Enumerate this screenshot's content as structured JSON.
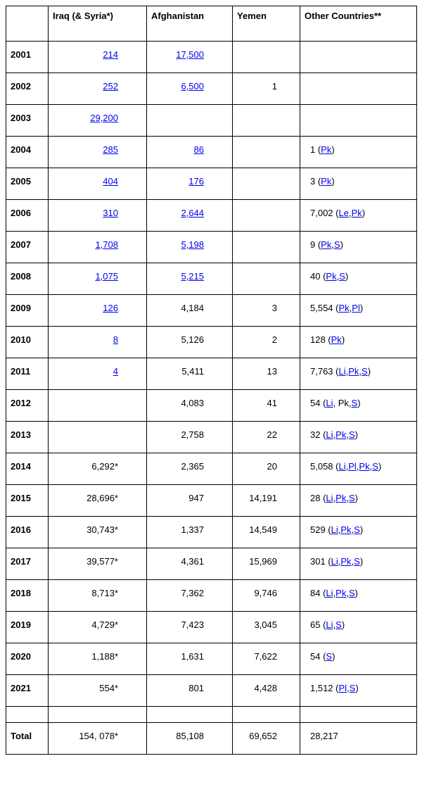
{
  "columns": [
    "",
    "Iraq (& Syria*)",
    "Afghanistan",
    "Yemen",
    "Other Countries**"
  ],
  "rows": [
    {
      "year": "2001",
      "iraq": {
        "t": "214",
        "l": true
      },
      "afg": {
        "t": "17,500",
        "l": true
      },
      "yem": {
        "t": ""
      },
      "oth": {
        "pre": "",
        "links": []
      }
    },
    {
      "year": "2002",
      "iraq": {
        "t": "252",
        "l": true
      },
      "afg": {
        "t": "6,500",
        "l": true
      },
      "yem": {
        "t": "1"
      },
      "oth": {
        "pre": "",
        "links": []
      }
    },
    {
      "year": "2003",
      "iraq": {
        "t": "29,200",
        "l": true
      },
      "afg": {
        "t": ""
      },
      "yem": {
        "t": ""
      },
      "oth": {
        "pre": "",
        "links": []
      }
    },
    {
      "year": "2004",
      "iraq": {
        "t": "285",
        "l": true
      },
      "afg": {
        "t": "86",
        "l": true
      },
      "yem": {
        "t": ""
      },
      "oth": {
        "pre": "1 (",
        "links": [
          "Pk"
        ],
        "post": ")"
      }
    },
    {
      "year": "2005",
      "iraq": {
        "t": "404",
        "l": true
      },
      "afg": {
        "t": "176",
        "l": true
      },
      "yem": {
        "t": ""
      },
      "oth": {
        "pre": "3 (",
        "links": [
          "Pk"
        ],
        "post": ")"
      }
    },
    {
      "year": "2006",
      "iraq": {
        "t": "310",
        "l": true
      },
      "afg": {
        "t": "2,644",
        "l": true
      },
      "yem": {
        "t": ""
      },
      "oth": {
        "pre": "7,002 (",
        "links": [
          "Le",
          "Pk"
        ],
        "post": ")"
      }
    },
    {
      "year": "2007",
      "iraq": {
        "t": "1,708",
        "l": true
      },
      "afg": {
        "t": "5,198",
        "l": true
      },
      "yem": {
        "t": ""
      },
      "oth": {
        "pre": "9 (",
        "links": [
          "Pk",
          "S"
        ],
        "post": ")"
      }
    },
    {
      "year": "2008",
      "iraq": {
        "t": "1,075",
        "l": true
      },
      "afg": {
        "t": "5,215",
        "l": true
      },
      "yem": {
        "t": ""
      },
      "oth": {
        "pre": "40 (",
        "links": [
          "Pk",
          "S"
        ],
        "post": ")"
      }
    },
    {
      "year": "2009",
      "iraq": {
        "t": "126",
        "l": true
      },
      "afg": {
        "t": "4,184"
      },
      "yem": {
        "t": "3"
      },
      "oth": {
        "pre": "5,554 (",
        "links": [
          "Pk",
          "Pl"
        ],
        "post": ")"
      }
    },
    {
      "year": "2010",
      "iraq": {
        "t": "8",
        "l": true
      },
      "afg": {
        "t": "5,126"
      },
      "yem": {
        "t": "2"
      },
      "oth": {
        "pre": "128 (",
        "links": [
          "Pk"
        ],
        "post": ")"
      }
    },
    {
      "year": "2011",
      "iraq": {
        "t": "4",
        "l": true
      },
      "afg": {
        "t": "5,411"
      },
      "yem": {
        "t": "13"
      },
      "oth": {
        "pre": "7,763 (",
        "links": [
          "Li",
          "Pk",
          "S"
        ],
        "post": ")"
      }
    },
    {
      "year": "2012",
      "iraq": {
        "t": ""
      },
      "afg": {
        "t": "4,083"
      },
      "yem": {
        "t": "41"
      },
      "oth": {
        "pre": "54 (",
        "links": [
          "Li"
        ],
        "plain": ", Pk,",
        "links2": [
          "S"
        ],
        "post": ")"
      }
    },
    {
      "year": "2013",
      "iraq": {
        "t": ""
      },
      "afg": {
        "t": "2,758"
      },
      "yem": {
        "t": "22"
      },
      "oth": {
        "pre": "32 (",
        "links": [
          "Li",
          "Pk",
          "S"
        ],
        "post": ")"
      }
    },
    {
      "year": "2014",
      "iraq": {
        "t": "6,292*"
      },
      "afg": {
        "t": "2,365"
      },
      "yem": {
        "t": "20"
      },
      "oth": {
        "pre": "5,058 (",
        "links": [
          "Li",
          "Pl",
          "Pk",
          "S"
        ],
        "post": ")"
      }
    },
    {
      "year": "2015",
      "iraq": {
        "t": "28,696*"
      },
      "afg": {
        "t": "947"
      },
      "yem": {
        "t": "14,191"
      },
      "oth": {
        "pre": "28 (",
        "links": [
          "Li",
          "Pk",
          "S"
        ],
        "post": ")"
      }
    },
    {
      "year": "2016",
      "iraq": {
        "t": "30,743*"
      },
      "afg": {
        "t": "1,337"
      },
      "yem": {
        "t": "14,549"
      },
      "oth": {
        "pre": "529 (",
        "links": [
          "Li",
          "Pk",
          "S"
        ],
        "post": ")"
      }
    },
    {
      "year": "2017",
      "iraq": {
        "t": "39,577*"
      },
      "afg": {
        "t": "4,361"
      },
      "yem": {
        "t": "15,969"
      },
      "oth": {
        "pre": "301 (",
        "links": [
          "Li",
          "Pk",
          "S"
        ],
        "post": ")"
      }
    },
    {
      "year": "2018",
      "iraq": {
        "t": "8,713*"
      },
      "afg": {
        "t": "7,362"
      },
      "yem": {
        "t": "9,746"
      },
      "oth": {
        "pre": "84 (",
        "links": [
          "Li",
          "Pk",
          "S"
        ],
        "post": ")"
      }
    },
    {
      "year": "2019",
      "iraq": {
        "t": "4,729*"
      },
      "afg": {
        "t": "7,423"
      },
      "yem": {
        "t": "3,045"
      },
      "oth": {
        "pre": "65 (",
        "links": [
          "Li",
          "S"
        ],
        "post": ")"
      }
    },
    {
      "year": "2020",
      "iraq": {
        "t": "1,188*"
      },
      "afg": {
        "t": "1,631"
      },
      "yem": {
        "t": "7,622"
      },
      "oth": {
        "pre": "54 (",
        "links": [
          "S"
        ],
        "post": ")"
      }
    },
    {
      "year": "2021",
      "iraq": {
        "t": "554*"
      },
      "afg": {
        "t": "801"
      },
      "yem": {
        "t": "4,428"
      },
      "oth": {
        "pre": "1,512 (",
        "links": [
          "Pl",
          "S"
        ],
        "post": ")"
      }
    }
  ],
  "total": {
    "label": "Total",
    "iraq": "154, 078*",
    "afg": "85,108",
    "yem": "69,652",
    "oth": "28,217"
  }
}
